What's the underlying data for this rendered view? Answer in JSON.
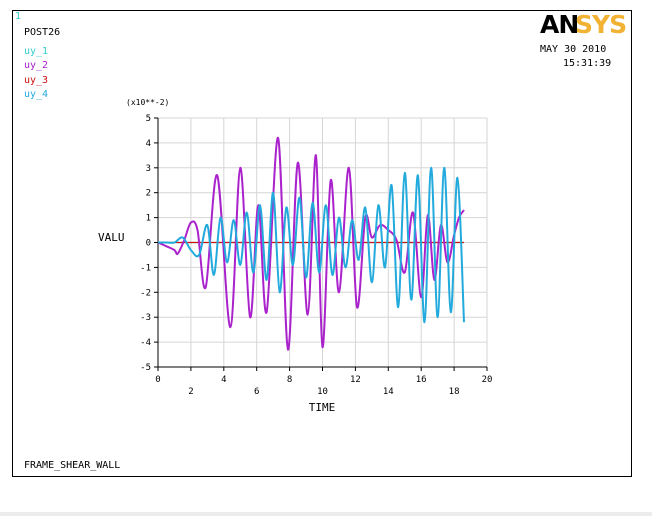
{
  "header": {
    "window_number": "1",
    "program": "POST26",
    "date": "MAY 30 2010",
    "time": "15:31:39",
    "logo_left": "AN",
    "logo_right": "SYS"
  },
  "footer": {
    "jobname": "FRAME_SHEAR_WALL"
  },
  "colors": {
    "uy_1": "#33cccc",
    "uy_2": "#aa22cc",
    "uy_3": "#cc1111",
    "uy_4": "#22aadd",
    "logo_left": "#000000",
    "logo_right": "#f2b233"
  },
  "chart_data": {
    "type": "line",
    "title": "",
    "xlabel": "TIME",
    "ylabel": "VALU",
    "y_multiplier": "(x10**-2)",
    "xlim": [
      0,
      20
    ],
    "ylim": [
      -5,
      5
    ],
    "x_ticks": [
      0,
      2,
      4,
      6,
      8,
      10,
      12,
      14,
      16,
      18,
      20
    ],
    "y_ticks": [
      -5,
      -4,
      -3,
      -2,
      -1,
      0,
      1,
      2,
      3,
      4,
      5
    ],
    "grid": true,
    "legend": "top-left",
    "series": [
      {
        "name": "uy_1",
        "x": [
          0,
          1,
          2,
          3,
          4,
          5,
          6,
          7,
          8,
          9,
          10,
          11,
          12,
          13,
          14,
          15,
          16,
          17,
          18.6
        ],
        "y": [
          0,
          0,
          0,
          0,
          0,
          0,
          0,
          0,
          0,
          0,
          0,
          0,
          0,
          0,
          0,
          0,
          0,
          0,
          0
        ]
      },
      {
        "name": "uy_2",
        "x": [
          0,
          0.5,
          1.0,
          1.2,
          1.6,
          2.0,
          2.4,
          2.9,
          3.6,
          4.4,
          5.0,
          5.6,
          6.1,
          6.6,
          7.3,
          7.9,
          8.5,
          9.1,
          9.6,
          10.0,
          10.5,
          11.0,
          11.6,
          12.1,
          12.6,
          13.0,
          13.5,
          14.0,
          14.5,
          15.0,
          15.5,
          16.0,
          16.4,
          16.8,
          17.2,
          17.6,
          18.0,
          18.3,
          18.6
        ],
        "y": [
          0,
          -0.15,
          -0.3,
          -0.45,
          0.1,
          0.8,
          0.5,
          -1.8,
          2.7,
          -3.4,
          3.0,
          -3.0,
          1.5,
          -2.8,
          4.2,
          -4.3,
          3.2,
          -2.9,
          3.5,
          -4.2,
          2.5,
          -2.0,
          3.0,
          -2.6,
          1.0,
          0.2,
          0.7,
          0.5,
          0.1,
          -1.2,
          1.2,
          -2.2,
          1.1,
          -1.5,
          0.7,
          -0.8,
          0.3,
          1.0,
          1.3
        ]
      },
      {
        "name": "uy_3",
        "x": [
          0,
          1,
          2,
          3,
          4,
          5,
          6,
          7,
          8,
          9,
          10,
          11,
          12,
          13,
          14,
          15,
          16,
          17,
          18.6
        ],
        "y": [
          0,
          0,
          0,
          0,
          0,
          0,
          0,
          0,
          0,
          0,
          0,
          0,
          0,
          0,
          0,
          0,
          0,
          0,
          0
        ]
      },
      {
        "name": "uy_4",
        "x": [
          0,
          0.5,
          1.0,
          1.5,
          2.0,
          2.5,
          3.0,
          3.4,
          3.8,
          4.2,
          4.6,
          5.0,
          5.4,
          5.8,
          6.2,
          6.6,
          7.0,
          7.4,
          7.8,
          8.2,
          8.6,
          9.0,
          9.4,
          9.8,
          10.2,
          10.6,
          11.0,
          11.4,
          11.8,
          12.2,
          12.6,
          13.0,
          13.4,
          13.8,
          14.2,
          14.6,
          15.0,
          15.4,
          15.8,
          16.2,
          16.6,
          17.0,
          17.4,
          17.8,
          18.2,
          18.6
        ],
        "y": [
          0,
          0.0,
          0.0,
          0.2,
          -0.3,
          -0.5,
          0.7,
          -1.3,
          1.0,
          -0.8,
          0.9,
          -0.9,
          1.2,
          -1.2,
          1.5,
          -1.5,
          2.0,
          -2.0,
          1.4,
          -0.9,
          1.8,
          -1.4,
          1.6,
          -1.2,
          1.5,
          -1.3,
          1.0,
          -1.0,
          0.9,
          -0.7,
          1.4,
          -1.6,
          1.5,
          -1.0,
          2.3,
          -2.6,
          2.8,
          -2.3,
          2.7,
          -3.2,
          3.0,
          -3.0,
          3.0,
          -2.8,
          2.6,
          -3.2
        ]
      }
    ]
  }
}
